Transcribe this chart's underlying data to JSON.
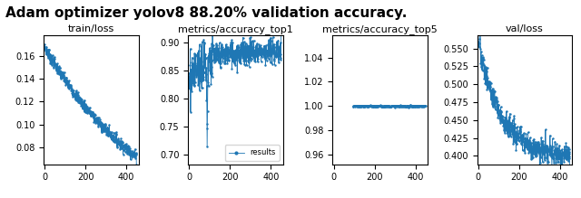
{
  "title": "Adam optimizer yolov8 88.20% validation accuracy.",
  "title_fontsize": 11,
  "title_fontweight": "bold",
  "subplot_titles": [
    "train/loss",
    "metrics/accuracy_top1",
    "metrics/accuracy_top5",
    "val/loss"
  ],
  "line_color": "#1f77b4",
  "marker": ".",
  "markersize": 1.5,
  "linewidth": 0.6,
  "legend_label": "results",
  "subplots": {
    "train_loss": {
      "ylim": [
        0.065,
        0.178
      ],
      "yticks": [
        0.08,
        0.1,
        0.12,
        0.14,
        0.16
      ],
      "xlim": [
        -5,
        460
      ],
      "xticks": [
        0,
        200,
        400
      ]
    },
    "metrics_top1": {
      "ylim": [
        0.682,
        0.912
      ],
      "yticks": [
        0.7,
        0.75,
        0.8,
        0.85,
        0.9
      ],
      "xlim": [
        -5,
        460
      ],
      "xticks": [
        0,
        200,
        400
      ],
      "legend": true
    },
    "metrics_top5": {
      "ylim": [
        0.952,
        1.058
      ],
      "yticks": [
        0.96,
        0.98,
        1.0,
        1.02,
        1.04
      ],
      "xlim": [
        -5,
        460
      ],
      "xticks": [
        0,
        200,
        400
      ]
    },
    "val_loss": {
      "ylim": [
        0.388,
        0.568
      ],
      "yticks": [
        0.4,
        0.425,
        0.45,
        0.475,
        0.5,
        0.525,
        0.55
      ],
      "xlim": [
        -5,
        460
      ],
      "xticks": [
        0,
        200,
        400
      ]
    }
  }
}
